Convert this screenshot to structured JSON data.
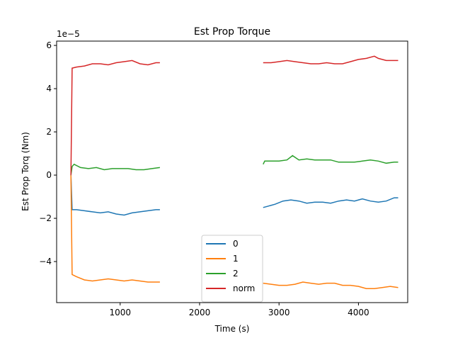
{
  "chart_data": {
    "type": "line",
    "title": "Est Prop Torque",
    "xlabel": "Time (s)",
    "ylabel": "Est Prop Torq (Nm)",
    "y_multiplier": "1e−5",
    "xlim": [
      200,
      4620
    ],
    "ylim": [
      -5.9,
      6.2
    ],
    "xticks": [
      {
        "value": 1000,
        "label": "1000"
      },
      {
        "value": 2000,
        "label": "2000"
      },
      {
        "value": 3000,
        "label": "3000"
      },
      {
        "value": 4000,
        "label": "4000"
      }
    ],
    "yticks": [
      {
        "value": -4,
        "label": "−4"
      },
      {
        "value": -2,
        "label": "−2"
      },
      {
        "value": 0,
        "label": "0"
      },
      {
        "value": 2,
        "label": "2"
      },
      {
        "value": 4,
        "label": "4"
      },
      {
        "value": 6,
        "label": "6"
      }
    ],
    "legend_position": "lower-center",
    "series": [
      {
        "name": "0",
        "color": "#1f77b4",
        "segments": [
          [
            [
              380,
              0
            ],
            [
              395,
              -1.6
            ],
            [
              450,
              -1.6
            ],
            [
              550,
              -1.65
            ],
            [
              650,
              -1.7
            ],
            [
              750,
              -1.75
            ],
            [
              850,
              -1.7
            ],
            [
              950,
              -1.8
            ],
            [
              1050,
              -1.85
            ],
            [
              1150,
              -1.75
            ],
            [
              1250,
              -1.7
            ],
            [
              1350,
              -1.65
            ],
            [
              1450,
              -1.6
            ],
            [
              1500,
              -1.6
            ]
          ],
          [
            [
              2800,
              -1.5
            ],
            [
              2850,
              -1.45
            ],
            [
              2950,
              -1.35
            ],
            [
              3050,
              -1.2
            ],
            [
              3150,
              -1.15
            ],
            [
              3250,
              -1.2
            ],
            [
              3350,
              -1.3
            ],
            [
              3450,
              -1.25
            ],
            [
              3550,
              -1.25
            ],
            [
              3650,
              -1.3
            ],
            [
              3750,
              -1.2
            ],
            [
              3850,
              -1.15
            ],
            [
              3950,
              -1.2
            ],
            [
              4050,
              -1.1
            ],
            [
              4150,
              -1.2
            ],
            [
              4250,
              -1.25
            ],
            [
              4350,
              -1.2
            ],
            [
              4450,
              -1.05
            ],
            [
              4500,
              -1.05
            ]
          ]
        ]
      },
      {
        "name": "1",
        "color": "#ff7f0e",
        "segments": [
          [
            [
              380,
              0
            ],
            [
              395,
              -4.6
            ],
            [
              450,
              -4.7
            ],
            [
              550,
              -4.85
            ],
            [
              650,
              -4.9
            ],
            [
              750,
              -4.85
            ],
            [
              850,
              -4.8
            ],
            [
              950,
              -4.85
            ],
            [
              1050,
              -4.9
            ],
            [
              1150,
              -4.85
            ],
            [
              1250,
              -4.9
            ],
            [
              1350,
              -4.95
            ],
            [
              1450,
              -4.95
            ],
            [
              1500,
              -4.95
            ]
          ],
          [
            [
              2800,
              -5.0
            ],
            [
              2900,
              -5.05
            ],
            [
              3000,
              -5.1
            ],
            [
              3100,
              -5.1
            ],
            [
              3200,
              -5.05
            ],
            [
              3300,
              -4.95
            ],
            [
              3400,
              -5.0
            ],
            [
              3500,
              -5.05
            ],
            [
              3600,
              -5.0
            ],
            [
              3700,
              -5.0
            ],
            [
              3800,
              -5.1
            ],
            [
              3900,
              -5.1
            ],
            [
              4000,
              -5.15
            ],
            [
              4100,
              -5.25
            ],
            [
              4200,
              -5.25
            ],
            [
              4300,
              -5.2
            ],
            [
              4400,
              -5.15
            ],
            [
              4500,
              -5.2
            ]
          ]
        ]
      },
      {
        "name": "2",
        "color": "#2ca02c",
        "segments": [
          [
            [
              380,
              0
            ],
            [
              395,
              0.4
            ],
            [
              420,
              0.5
            ],
            [
              500,
              0.35
            ],
            [
              600,
              0.3
            ],
            [
              700,
              0.35
            ],
            [
              800,
              0.25
            ],
            [
              900,
              0.3
            ],
            [
              1000,
              0.3
            ],
            [
              1100,
              0.3
            ],
            [
              1200,
              0.25
            ],
            [
              1300,
              0.25
            ],
            [
              1400,
              0.3
            ],
            [
              1500,
              0.35
            ]
          ],
          [
            [
              2800,
              0.5
            ],
            [
              2820,
              0.65
            ],
            [
              2900,
              0.65
            ],
            [
              3000,
              0.65
            ],
            [
              3100,
              0.7
            ],
            [
              3170,
              0.9
            ],
            [
              3250,
              0.7
            ],
            [
              3350,
              0.75
            ],
            [
              3450,
              0.7
            ],
            [
              3550,
              0.7
            ],
            [
              3650,
              0.7
            ],
            [
              3750,
              0.6
            ],
            [
              3850,
              0.6
            ],
            [
              3950,
              0.6
            ],
            [
              4050,
              0.65
            ],
            [
              4150,
              0.7
            ],
            [
              4250,
              0.65
            ],
            [
              4350,
              0.55
            ],
            [
              4450,
              0.6
            ],
            [
              4500,
              0.6
            ]
          ]
        ]
      },
      {
        "name": "norm",
        "color": "#d62728",
        "segments": [
          [
            [
              380,
              0
            ],
            [
              395,
              4.95
            ],
            [
              450,
              5.0
            ],
            [
              550,
              5.05
            ],
            [
              650,
              5.15
            ],
            [
              750,
              5.15
            ],
            [
              850,
              5.1
            ],
            [
              950,
              5.2
            ],
            [
              1050,
              5.25
            ],
            [
              1150,
              5.3
            ],
            [
              1250,
              5.15
            ],
            [
              1350,
              5.1
            ],
            [
              1450,
              5.2
            ],
            [
              1500,
              5.2
            ]
          ],
          [
            [
              2800,
              5.2
            ],
            [
              2900,
              5.2
            ],
            [
              3000,
              5.25
            ],
            [
              3100,
              5.3
            ],
            [
              3200,
              5.25
            ],
            [
              3300,
              5.2
            ],
            [
              3400,
              5.15
            ],
            [
              3500,
              5.15
            ],
            [
              3600,
              5.2
            ],
            [
              3700,
              5.15
            ],
            [
              3800,
              5.15
            ],
            [
              3900,
              5.25
            ],
            [
              4000,
              5.35
            ],
            [
              4100,
              5.4
            ],
            [
              4200,
              5.5
            ],
            [
              4250,
              5.4
            ],
            [
              4350,
              5.3
            ],
            [
              4450,
              5.3
            ],
            [
              4500,
              5.3
            ]
          ]
        ]
      }
    ]
  }
}
